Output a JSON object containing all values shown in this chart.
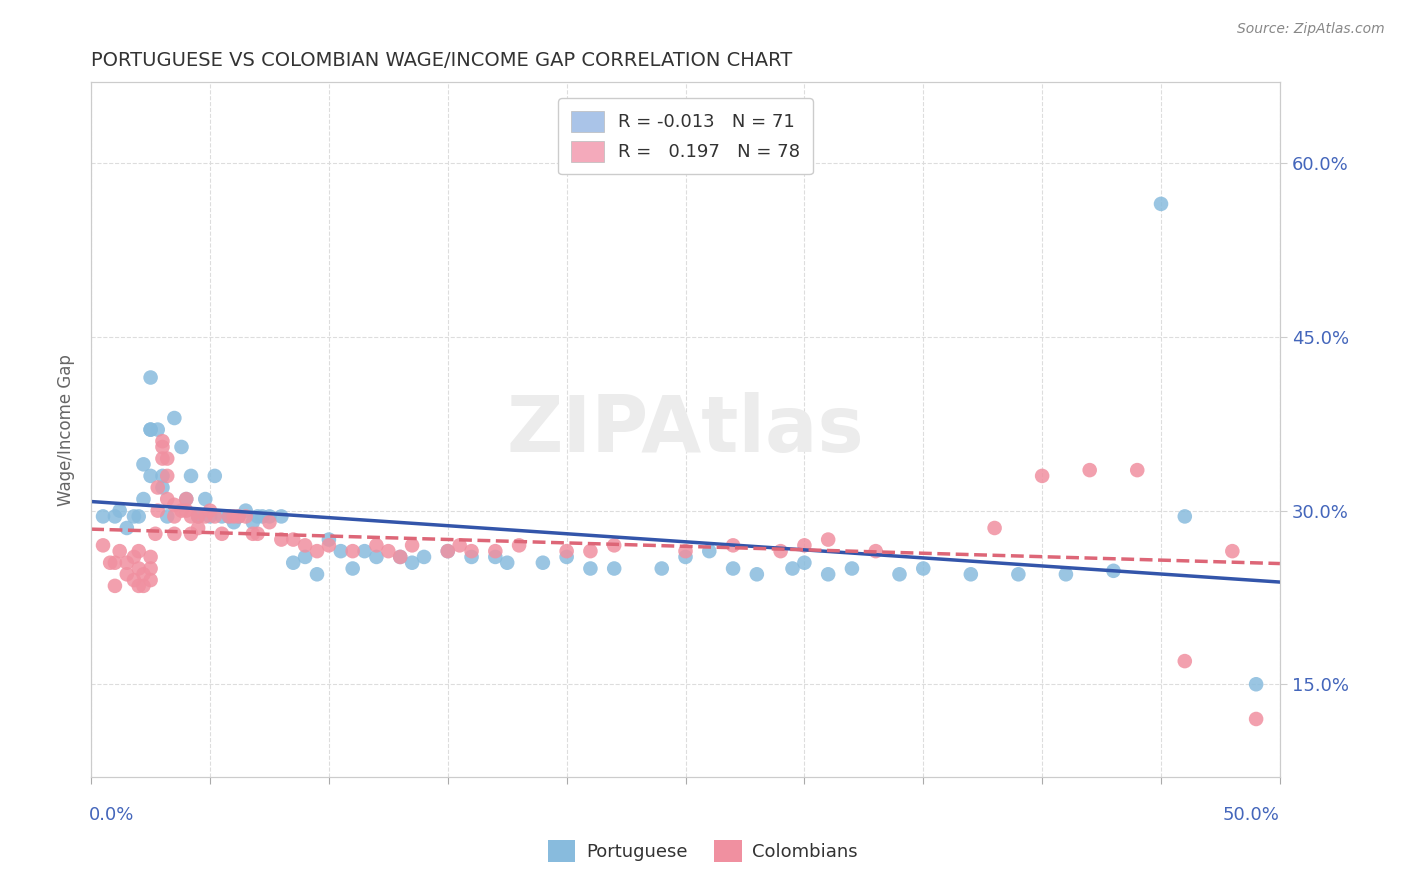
{
  "title": "PORTUGUESE VS COLOMBIAN WAGE/INCOME GAP CORRELATION CHART",
  "source": "Source: ZipAtlas.com",
  "ylabel": "Wage/Income Gap",
  "xlim": [
    0.0,
    0.5
  ],
  "ylim": [
    0.07,
    0.67
  ],
  "yticks": [
    0.15,
    0.3,
    0.45,
    0.6
  ],
  "ytick_labels": [
    "15.0%",
    "30.0%",
    "45.0%",
    "60.0%"
  ],
  "legend_r_entries": [
    {
      "label": "R = -0.013   N = 71",
      "color": "#aac4e8"
    },
    {
      "label": "R =   0.197   N = 78",
      "color": "#f4aabb"
    }
  ],
  "portuguese_color": "#88bbdd",
  "colombian_color": "#f090a0",
  "trend_portuguese_color": "#3355aa",
  "trend_colombian_color": "#dd6677",
  "watermark": "ZIPAtlas",
  "portuguese_points": [
    [
      0.005,
      0.295
    ],
    [
      0.01,
      0.295
    ],
    [
      0.012,
      0.3
    ],
    [
      0.015,
      0.285
    ],
    [
      0.018,
      0.295
    ],
    [
      0.02,
      0.295
    ],
    [
      0.022,
      0.31
    ],
    [
      0.022,
      0.34
    ],
    [
      0.025,
      0.37
    ],
    [
      0.025,
      0.415
    ],
    [
      0.025,
      0.37
    ],
    [
      0.025,
      0.33
    ],
    [
      0.028,
      0.37
    ],
    [
      0.03,
      0.33
    ],
    [
      0.03,
      0.32
    ],
    [
      0.032,
      0.295
    ],
    [
      0.035,
      0.38
    ],
    [
      0.038,
      0.355
    ],
    [
      0.04,
      0.31
    ],
    [
      0.042,
      0.33
    ],
    [
      0.045,
      0.295
    ],
    [
      0.048,
      0.31
    ],
    [
      0.05,
      0.295
    ],
    [
      0.052,
      0.33
    ],
    [
      0.055,
      0.295
    ],
    [
      0.058,
      0.295
    ],
    [
      0.06,
      0.29
    ],
    [
      0.062,
      0.295
    ],
    [
      0.065,
      0.3
    ],
    [
      0.068,
      0.29
    ],
    [
      0.07,
      0.295
    ],
    [
      0.072,
      0.295
    ],
    [
      0.075,
      0.295
    ],
    [
      0.08,
      0.295
    ],
    [
      0.085,
      0.255
    ],
    [
      0.09,
      0.26
    ],
    [
      0.095,
      0.245
    ],
    [
      0.1,
      0.275
    ],
    [
      0.105,
      0.265
    ],
    [
      0.11,
      0.25
    ],
    [
      0.115,
      0.265
    ],
    [
      0.12,
      0.26
    ],
    [
      0.13,
      0.26
    ],
    [
      0.135,
      0.255
    ],
    [
      0.14,
      0.26
    ],
    [
      0.15,
      0.265
    ],
    [
      0.16,
      0.26
    ],
    [
      0.17,
      0.26
    ],
    [
      0.175,
      0.255
    ],
    [
      0.19,
      0.255
    ],
    [
      0.2,
      0.26
    ],
    [
      0.21,
      0.25
    ],
    [
      0.22,
      0.25
    ],
    [
      0.24,
      0.25
    ],
    [
      0.25,
      0.26
    ],
    [
      0.26,
      0.265
    ],
    [
      0.27,
      0.25
    ],
    [
      0.28,
      0.245
    ],
    [
      0.295,
      0.25
    ],
    [
      0.3,
      0.255
    ],
    [
      0.31,
      0.245
    ],
    [
      0.32,
      0.25
    ],
    [
      0.34,
      0.245
    ],
    [
      0.35,
      0.25
    ],
    [
      0.37,
      0.245
    ],
    [
      0.39,
      0.245
    ],
    [
      0.41,
      0.245
    ],
    [
      0.43,
      0.248
    ],
    [
      0.45,
      0.565
    ],
    [
      0.46,
      0.295
    ],
    [
      0.49,
      0.15
    ]
  ],
  "colombian_points": [
    [
      0.005,
      0.27
    ],
    [
      0.008,
      0.255
    ],
    [
      0.01,
      0.255
    ],
    [
      0.01,
      0.235
    ],
    [
      0.012,
      0.265
    ],
    [
      0.015,
      0.245
    ],
    [
      0.015,
      0.255
    ],
    [
      0.018,
      0.26
    ],
    [
      0.018,
      0.24
    ],
    [
      0.02,
      0.265
    ],
    [
      0.02,
      0.25
    ],
    [
      0.02,
      0.235
    ],
    [
      0.022,
      0.235
    ],
    [
      0.022,
      0.245
    ],
    [
      0.025,
      0.26
    ],
    [
      0.025,
      0.25
    ],
    [
      0.025,
      0.24
    ],
    [
      0.027,
      0.28
    ],
    [
      0.028,
      0.3
    ],
    [
      0.028,
      0.32
    ],
    [
      0.03,
      0.345
    ],
    [
      0.03,
      0.355
    ],
    [
      0.03,
      0.36
    ],
    [
      0.032,
      0.345
    ],
    [
      0.032,
      0.33
    ],
    [
      0.032,
      0.31
    ],
    [
      0.035,
      0.305
    ],
    [
      0.035,
      0.295
    ],
    [
      0.035,
      0.28
    ],
    [
      0.038,
      0.3
    ],
    [
      0.04,
      0.31
    ],
    [
      0.04,
      0.3
    ],
    [
      0.042,
      0.295
    ],
    [
      0.042,
      0.28
    ],
    [
      0.045,
      0.295
    ],
    [
      0.045,
      0.285
    ],
    [
      0.048,
      0.295
    ],
    [
      0.05,
      0.3
    ],
    [
      0.052,
      0.295
    ],
    [
      0.055,
      0.28
    ],
    [
      0.058,
      0.295
    ],
    [
      0.06,
      0.295
    ],
    [
      0.062,
      0.295
    ],
    [
      0.065,
      0.295
    ],
    [
      0.068,
      0.28
    ],
    [
      0.07,
      0.28
    ],
    [
      0.075,
      0.29
    ],
    [
      0.08,
      0.275
    ],
    [
      0.085,
      0.275
    ],
    [
      0.09,
      0.27
    ],
    [
      0.095,
      0.265
    ],
    [
      0.1,
      0.27
    ],
    [
      0.11,
      0.265
    ],
    [
      0.12,
      0.27
    ],
    [
      0.125,
      0.265
    ],
    [
      0.13,
      0.26
    ],
    [
      0.135,
      0.27
    ],
    [
      0.15,
      0.265
    ],
    [
      0.155,
      0.27
    ],
    [
      0.16,
      0.265
    ],
    [
      0.17,
      0.265
    ],
    [
      0.18,
      0.27
    ],
    [
      0.2,
      0.265
    ],
    [
      0.21,
      0.265
    ],
    [
      0.22,
      0.27
    ],
    [
      0.25,
      0.265
    ],
    [
      0.27,
      0.27
    ],
    [
      0.29,
      0.265
    ],
    [
      0.3,
      0.27
    ],
    [
      0.31,
      0.275
    ],
    [
      0.33,
      0.265
    ],
    [
      0.38,
      0.285
    ],
    [
      0.4,
      0.33
    ],
    [
      0.42,
      0.335
    ],
    [
      0.44,
      0.335
    ],
    [
      0.46,
      0.17
    ],
    [
      0.48,
      0.265
    ],
    [
      0.49,
      0.12
    ]
  ]
}
